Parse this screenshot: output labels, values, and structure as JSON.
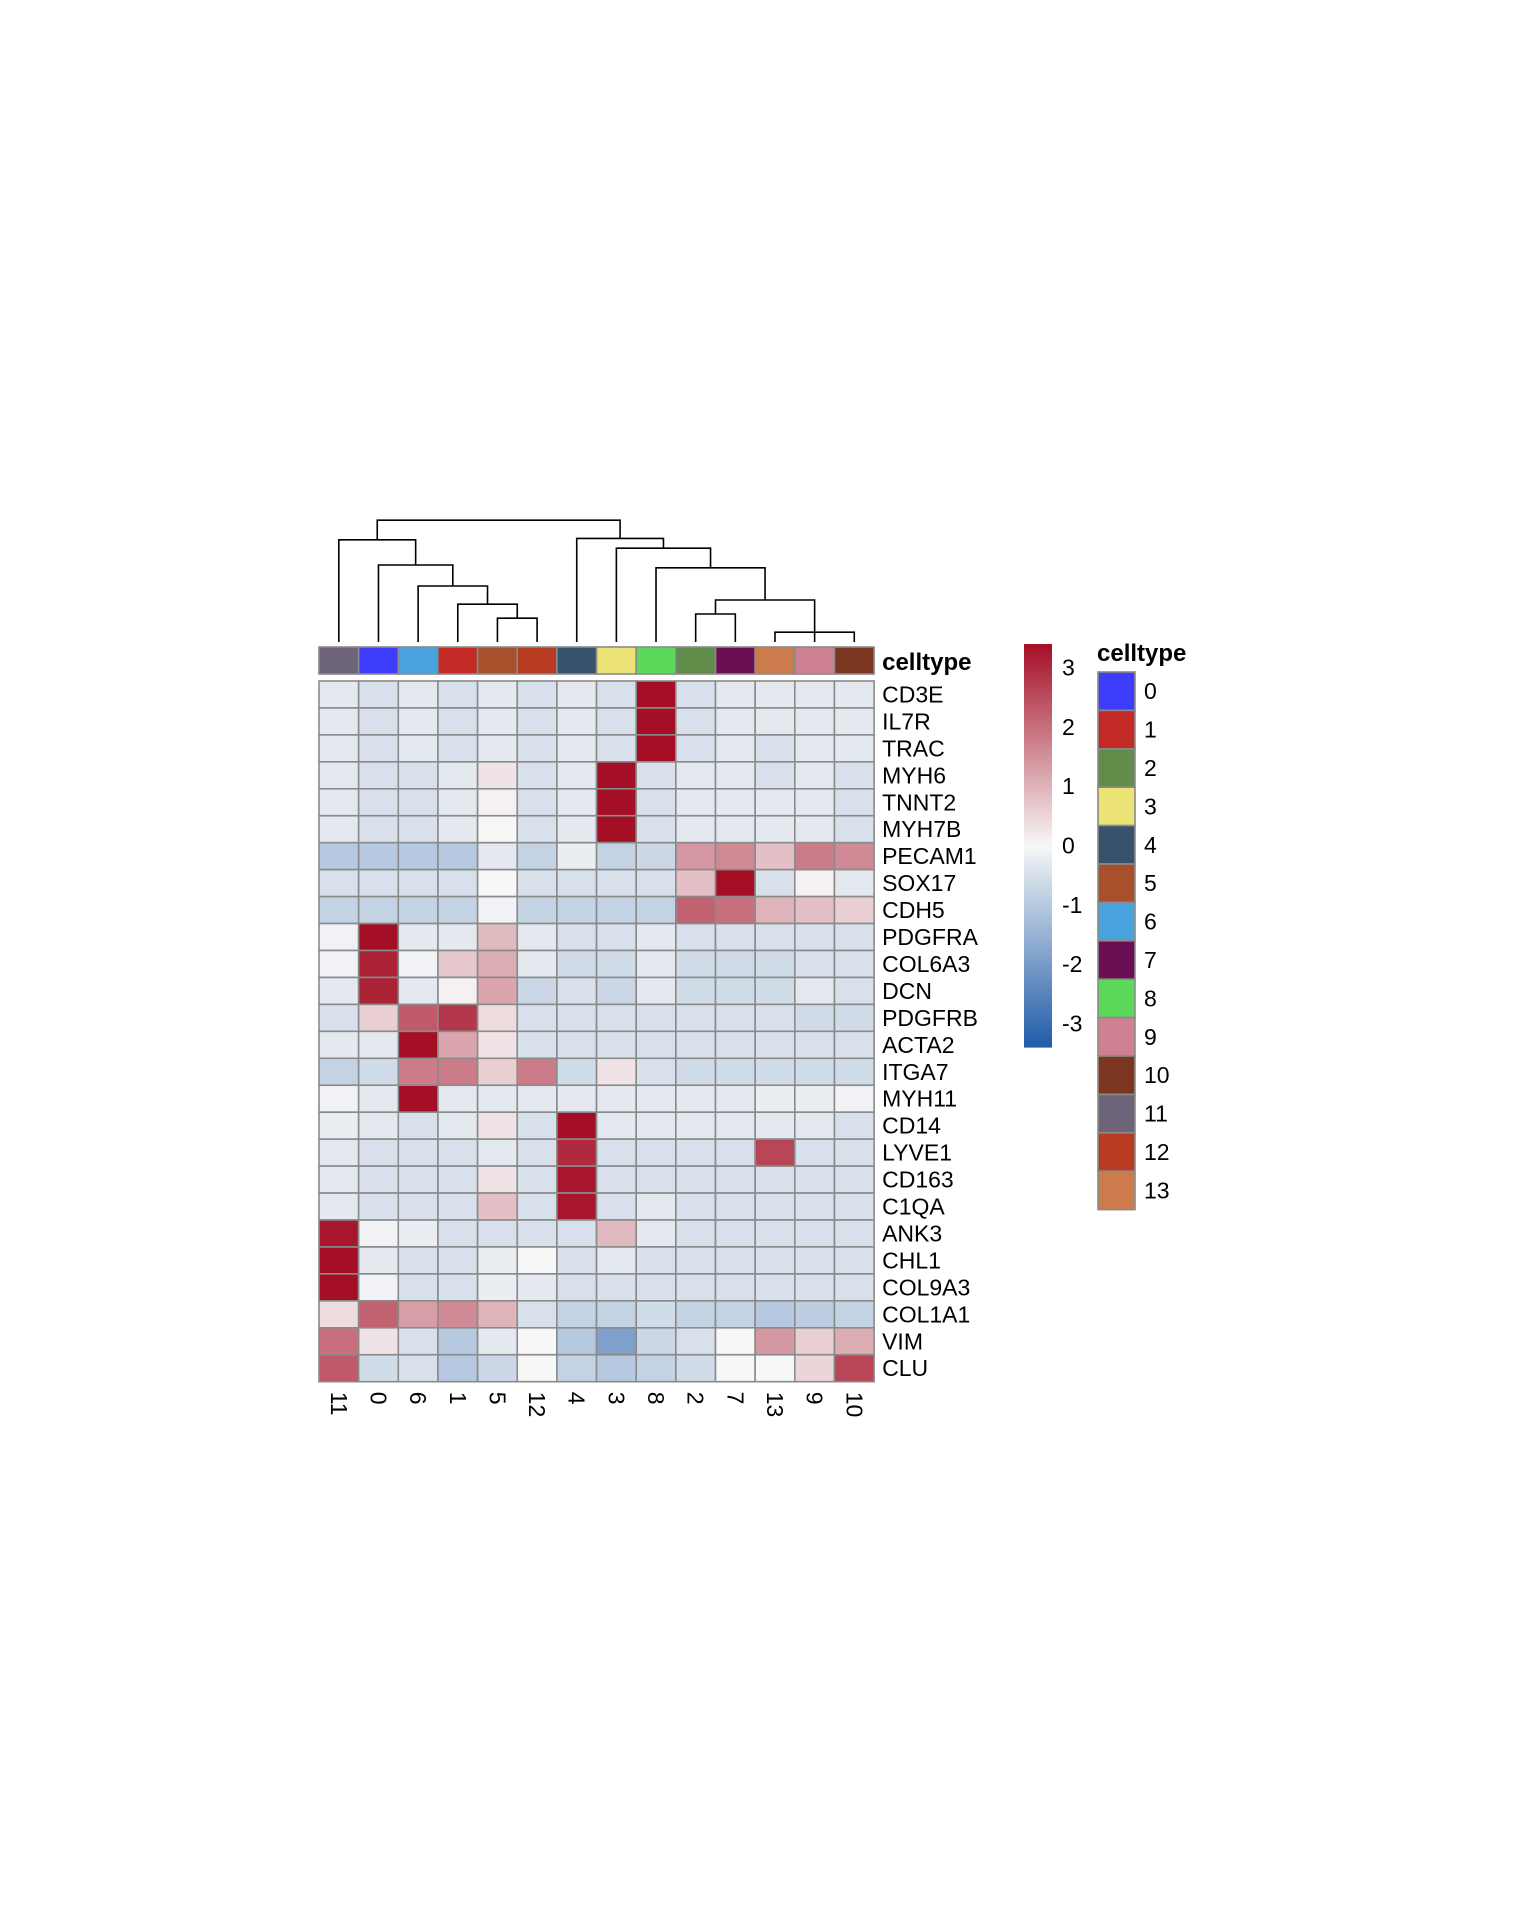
{
  "chart_data": {
    "type": "heatmap",
    "title": "",
    "columns": [
      "11",
      "0",
      "6",
      "1",
      "5",
      "12",
      "4",
      "3",
      "8",
      "2",
      "7",
      "13",
      "9",
      "10"
    ],
    "column_colors": [
      "#6e6479",
      "#3f3dfc",
      "#4aa3de",
      "#c32a26",
      "#a84f2c",
      "#b93b22",
      "#37536b",
      "#ece476",
      "#5cd85a",
      "#628c4a",
      "#6a0f53",
      "#cc7b4c",
      "#cf8193",
      "#7c3620"
    ],
    "rows": [
      "CD3E",
      "IL7R",
      "TRAC",
      "MYH6",
      "TNNT2",
      "MYH7B",
      "PECAM1",
      "SOX17",
      "CDH5",
      "PDGFRA",
      "COL6A3",
      "DCN",
      "PDGFRB",
      "ACTA2",
      "ITGA7",
      "MYH11",
      "CD14",
      "LYVE1",
      "CD163",
      "C1QA",
      "ANK3",
      "CHL1",
      "COL9A3",
      "COL1A1",
      "VIM",
      "CLU"
    ],
    "values": [
      [
        -0.3,
        -0.5,
        -0.3,
        -0.5,
        -0.3,
        -0.5,
        -0.3,
        -0.5,
        3.4,
        -0.5,
        -0.3,
        -0.3,
        -0.3,
        -0.3
      ],
      [
        -0.3,
        -0.5,
        -0.3,
        -0.5,
        -0.3,
        -0.5,
        -0.3,
        -0.5,
        3.4,
        -0.5,
        -0.3,
        -0.3,
        -0.3,
        -0.3
      ],
      [
        -0.3,
        -0.5,
        -0.3,
        -0.5,
        -0.3,
        -0.5,
        -0.3,
        -0.5,
        3.4,
        -0.5,
        -0.3,
        -0.5,
        -0.3,
        -0.3
      ],
      [
        -0.3,
        -0.5,
        -0.5,
        -0.3,
        0.3,
        -0.5,
        -0.3,
        3.4,
        -0.5,
        -0.3,
        -0.3,
        -0.5,
        -0.3,
        -0.5
      ],
      [
        -0.3,
        -0.5,
        -0.5,
        -0.3,
        0.1,
        -0.5,
        -0.3,
        3.4,
        -0.5,
        -0.3,
        -0.3,
        -0.3,
        -0.3,
        -0.5
      ],
      [
        -0.3,
        -0.5,
        -0.5,
        -0.3,
        0.0,
        -0.5,
        -0.3,
        3.4,
        -0.5,
        -0.3,
        -0.3,
        -0.3,
        -0.3,
        -0.5
      ],
      [
        -1.0,
        -1.0,
        -1.0,
        -1.0,
        -0.3,
        -0.8,
        -0.2,
        -0.8,
        -0.7,
        1.4,
        1.6,
        0.8,
        1.8,
        1.6
      ],
      [
        -0.5,
        -0.5,
        -0.5,
        -0.5,
        0.0,
        -0.5,
        -0.5,
        -0.5,
        -0.5,
        0.8,
        3.4,
        -0.5,
        0.1,
        -0.3
      ],
      [
        -0.8,
        -0.8,
        -0.8,
        -0.8,
        -0.1,
        -0.8,
        -0.8,
        -0.8,
        -0.8,
        2.2,
        2.0,
        1.0,
        0.8,
        0.6
      ],
      [
        -0.1,
        3.4,
        -0.3,
        -0.3,
        0.9,
        -0.3,
        -0.5,
        -0.5,
        -0.3,
        -0.5,
        -0.5,
        -0.5,
        -0.5,
        -0.5
      ],
      [
        -0.1,
        3.1,
        -0.1,
        0.7,
        1.1,
        -0.3,
        -0.6,
        -0.6,
        -0.3,
        -0.6,
        -0.6,
        -0.6,
        -0.5,
        -0.5
      ],
      [
        -0.3,
        3.1,
        -0.3,
        0.1,
        1.2,
        -0.7,
        -0.5,
        -0.7,
        -0.3,
        -0.6,
        -0.6,
        -0.6,
        -0.3,
        -0.5
      ],
      [
        -0.5,
        0.6,
        2.3,
        2.8,
        0.4,
        -0.5,
        -0.5,
        -0.5,
        -0.5,
        -0.5,
        -0.5,
        -0.5,
        -0.6,
        -0.6
      ],
      [
        -0.3,
        -0.3,
        3.4,
        1.2,
        0.3,
        -0.5,
        -0.5,
        -0.5,
        -0.5,
        -0.5,
        -0.5,
        -0.5,
        -0.5,
        -0.5
      ],
      [
        -0.8,
        -0.6,
        1.8,
        1.8,
        0.6,
        1.8,
        -0.6,
        0.3,
        -0.5,
        -0.6,
        -0.6,
        -0.6,
        -0.6,
        -0.6
      ],
      [
        -0.1,
        -0.3,
        3.4,
        -0.3,
        -0.3,
        -0.3,
        -0.3,
        -0.3,
        -0.3,
        -0.3,
        -0.3,
        -0.2,
        -0.2,
        -0.1
      ],
      [
        -0.2,
        -0.3,
        -0.5,
        -0.3,
        0.3,
        -0.5,
        3.4,
        -0.3,
        -0.3,
        -0.3,
        -0.3,
        -0.3,
        -0.3,
        -0.5
      ],
      [
        -0.3,
        -0.5,
        -0.5,
        -0.5,
        -0.3,
        -0.5,
        3.0,
        -0.5,
        -0.5,
        -0.5,
        -0.5,
        2.6,
        -0.5,
        -0.5
      ],
      [
        -0.3,
        -0.5,
        -0.5,
        -0.5,
        0.3,
        -0.5,
        3.3,
        -0.5,
        -0.5,
        -0.5,
        -0.5,
        -0.5,
        -0.5,
        -0.5
      ],
      [
        -0.3,
        -0.5,
        -0.5,
        -0.5,
        0.8,
        -0.5,
        3.3,
        -0.5,
        -0.3,
        -0.5,
        -0.5,
        -0.5,
        -0.5,
        -0.5
      ],
      [
        3.3,
        -0.1,
        -0.2,
        -0.5,
        -0.5,
        -0.5,
        -0.5,
        0.9,
        -0.3,
        -0.5,
        -0.5,
        -0.5,
        -0.5,
        -0.5
      ],
      [
        3.4,
        -0.3,
        -0.5,
        -0.5,
        -0.2,
        0.0,
        -0.5,
        -0.3,
        -0.5,
        -0.5,
        -0.5,
        -0.5,
        -0.5,
        -0.5
      ],
      [
        3.4,
        -0.1,
        -0.5,
        -0.5,
        -0.2,
        -0.3,
        -0.5,
        -0.5,
        -0.5,
        -0.5,
        -0.5,
        -0.5,
        -0.5,
        -0.5
      ],
      [
        0.4,
        2.2,
        1.3,
        1.6,
        1.0,
        -0.5,
        -0.8,
        -0.8,
        -0.6,
        -0.8,
        -0.8,
        -1.0,
        -0.9,
        -0.8
      ],
      [
        2.0,
        0.3,
        -0.5,
        -1.0,
        -0.3,
        0.0,
        -1.0,
        -1.9,
        -0.7,
        -0.5,
        0.0,
        1.4,
        0.6,
        1.1
      ],
      [
        2.3,
        -0.6,
        -0.5,
        -1.0,
        -0.7,
        0.0,
        -0.8,
        -1.0,
        -0.8,
        -0.6,
        0.0,
        0.0,
        0.5,
        2.6
      ]
    ],
    "color_scale": {
      "min": -3.4,
      "max": 3.4,
      "ticks": [
        3,
        2,
        1,
        0,
        -1,
        -2,
        -3
      ],
      "tick_labels": [
        "3",
        "2",
        "1",
        "0",
        "-1",
        "-2",
        "-3"
      ],
      "low_color": "#1f5ca8",
      "mid_color": "#f7f7f7",
      "high_color": "#a50f26"
    },
    "annotation_label": "celltype",
    "legend": {
      "title": "celltype",
      "items": [
        {
          "label": "0",
          "color": "#3f3dfc"
        },
        {
          "label": "1",
          "color": "#c32a26"
        },
        {
          "label": "2",
          "color": "#628c4a"
        },
        {
          "label": "3",
          "color": "#ece476"
        },
        {
          "label": "4",
          "color": "#37536b"
        },
        {
          "label": "5",
          "color": "#a84f2c"
        },
        {
          "label": "6",
          "color": "#4aa3de"
        },
        {
          "label": "7",
          "color": "#6a0f53"
        },
        {
          "label": "8",
          "color": "#5cd85a"
        },
        {
          "label": "9",
          "color": "#cf8193"
        },
        {
          "label": "10",
          "color": "#7c3620"
        },
        {
          "label": "11",
          "color": "#6e6479"
        },
        {
          "label": "12",
          "color": "#b93b22"
        },
        {
          "label": "13",
          "color": "#cc7b4c"
        }
      ]
    },
    "dendrogram": {
      "nodes": [
        {
          "a": 4,
          "b": 5,
          "level": 0.17
        },
        {
          "a": 11,
          "b": 13,
          "level": 0.07
        },
        {
          "a": 12,
          "b": "l1",
          "level": 0.16
        },
        {
          "a": 9,
          "b": 10,
          "level": 0.2
        },
        {
          "a": 3,
          "b": "l0",
          "level": 0.27
        },
        {
          "a": "l3",
          "b": "l2",
          "level": 0.3
        },
        {
          "a": 2,
          "b": "l4",
          "level": 0.4
        },
        {
          "a": 8,
          "b": "l5",
          "level": 0.53
        },
        {
          "a": 1,
          "b": "l6",
          "level": 0.55
        },
        {
          "a": 7,
          "b": "l7",
          "level": 0.67
        },
        {
          "a": 0,
          "b": "l8",
          "level": 0.73
        },
        {
          "a": 6,
          "b": "l9",
          "level": 0.74
        },
        {
          "a": "l10",
          "b": "l11",
          "level": 0.87
        }
      ]
    }
  }
}
